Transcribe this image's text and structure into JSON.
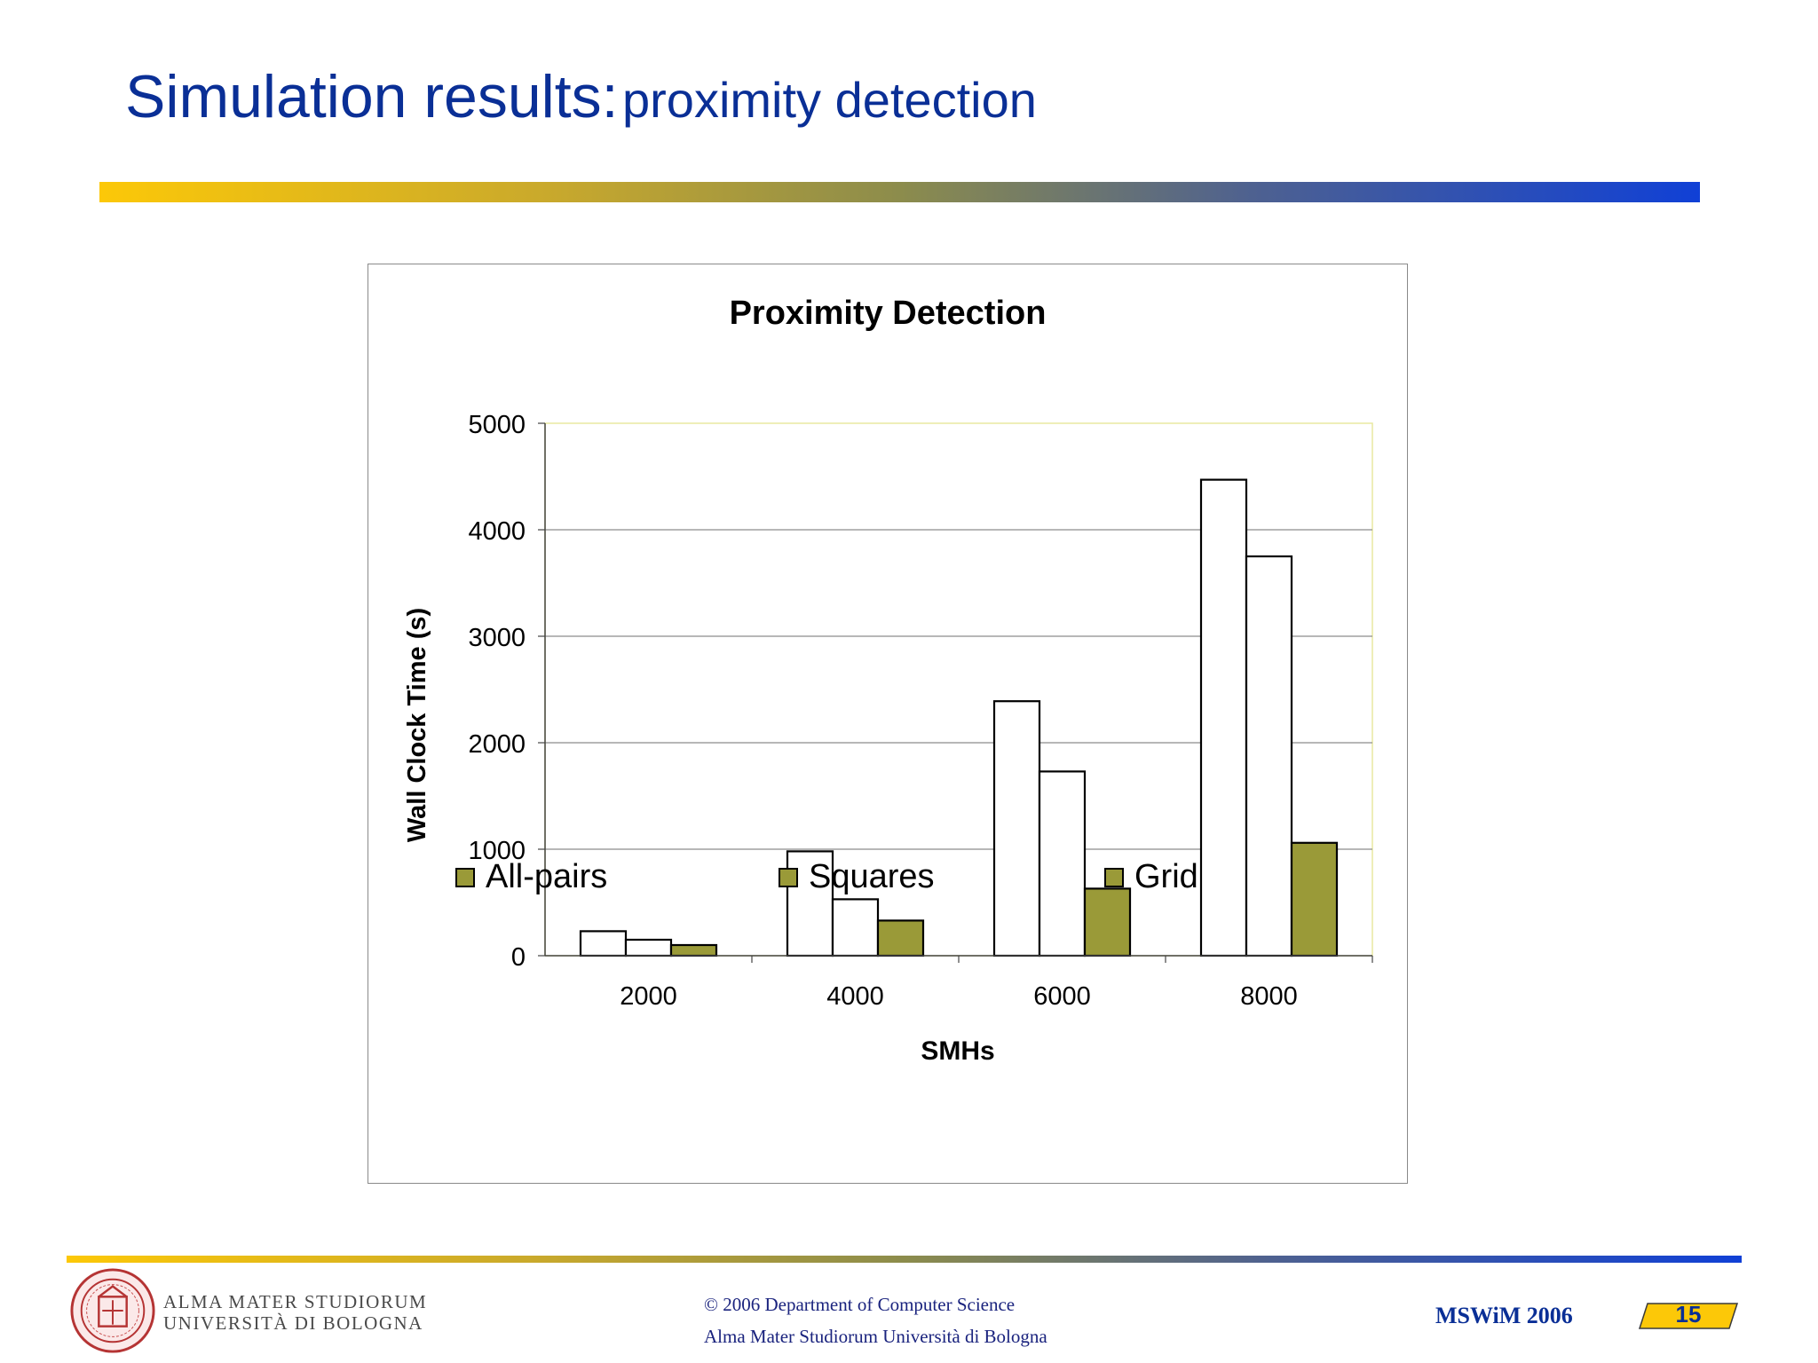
{
  "slide": {
    "title_main": "Simulation results:",
    "title_sub": "proximity detection"
  },
  "footer": {
    "university_line1": "ALMA MATER STUDIORUM",
    "university_line2": "UNIVERSITÀ DI BOLOGNA",
    "copyright_line1": "© 2006 Department of Computer Science",
    "copyright_line2": "Alma Mater Studiorum Università di Bologna",
    "conference": "MSWiM 2006",
    "page_number": "15"
  },
  "colors": {
    "title_blue": "#0a2f96",
    "bar_white": "#ffffff",
    "bar_olive": "#9a9a38",
    "legend_olive": "#9a9a38",
    "gridline": "#8c8c8c",
    "plot_border": "#e8e8a0"
  },
  "chart_data": {
    "type": "bar",
    "title": "Proximity Detection",
    "xlabel": "SMHs",
    "ylabel": "Wall Clock Time (s)",
    "categories": [
      "2000",
      "4000",
      "6000",
      "8000"
    ],
    "ylim": [
      0,
      5000
    ],
    "yticks": [
      0,
      1000,
      2000,
      3000,
      4000,
      5000
    ],
    "grid": true,
    "legend_position": "bottom",
    "series": [
      {
        "name": "All-pairs",
        "values": [
          230,
          980,
          2390,
          4470
        ],
        "fill": "#ffffff"
      },
      {
        "name": "Squares",
        "values": [
          150,
          530,
          1730,
          3750
        ],
        "fill": "#ffffff"
      },
      {
        "name": "Grid",
        "values": [
          100,
          330,
          630,
          1060
        ],
        "fill": "#9a9a38"
      }
    ]
  }
}
